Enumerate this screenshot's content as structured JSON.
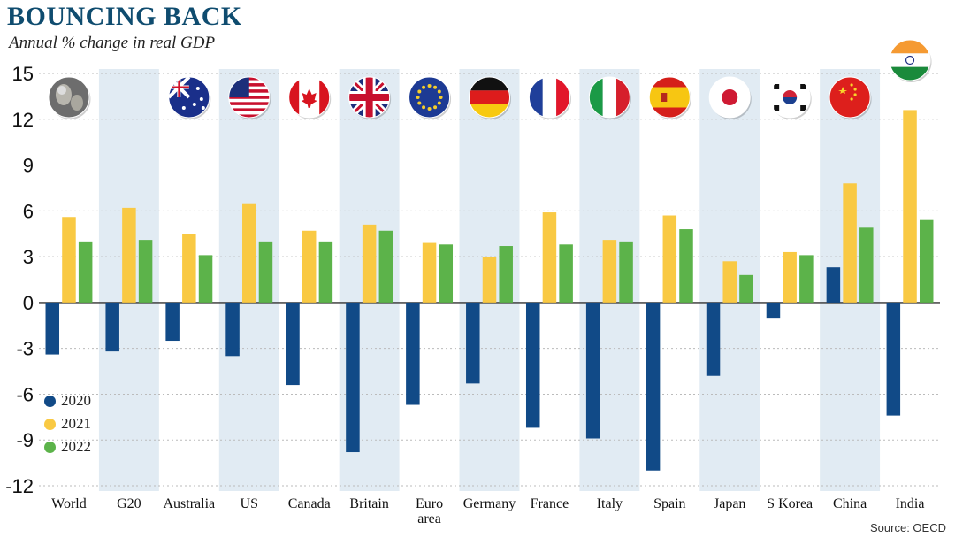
{
  "title": "BOUNCING BACK",
  "subtitle": "Annual % change in real GDP",
  "source": "Source: OECD",
  "colors": {
    "2020": "#114a87",
    "2021": "#f9c943",
    "2022": "#5cb34a",
    "band": "#e1ebf3",
    "title": "#0f4c6f"
  },
  "chart_data": {
    "type": "bar",
    "title": "BOUNCING BACK",
    "subtitle": "Annual % change in real GDP",
    "ylim": [
      -12,
      15
    ],
    "yticks": [
      15,
      12,
      9,
      6,
      3,
      0,
      -3,
      -6,
      -9,
      -12
    ],
    "legend_position": "bottom-left",
    "categories": [
      {
        "label": "World",
        "icon": "globe-icon"
      },
      {
        "label": "G20",
        "icon": ""
      },
      {
        "label": "Australia",
        "icon": "flag-australia-icon"
      },
      {
        "label": "US",
        "icon": "flag-us-icon"
      },
      {
        "label": "Canada",
        "icon": "flag-canada-icon"
      },
      {
        "label": "Britain",
        "icon": "flag-britain-icon"
      },
      {
        "label": "Euro area",
        "icon": "flag-eu-icon"
      },
      {
        "label": "Germany",
        "icon": "flag-germany-icon"
      },
      {
        "label": "France",
        "icon": "flag-france-icon"
      },
      {
        "label": "Italy",
        "icon": "flag-italy-icon"
      },
      {
        "label": "Spain",
        "icon": "flag-spain-icon"
      },
      {
        "label": "Japan",
        "icon": "flag-japan-icon"
      },
      {
        "label": "S Korea",
        "icon": "flag-korea-icon"
      },
      {
        "label": "China",
        "icon": "flag-china-icon"
      },
      {
        "label": "India",
        "icon": "flag-india-icon"
      }
    ],
    "series": [
      {
        "name": "2020",
        "values": [
          -3.4,
          -3.2,
          -2.5,
          -3.5,
          -5.4,
          -9.8,
          -6.7,
          -5.3,
          -8.2,
          -8.9,
          -11.0,
          -4.8,
          -1.0,
          2.3,
          -7.4
        ]
      },
      {
        "name": "2021",
        "values": [
          5.6,
          6.2,
          4.5,
          6.5,
          4.7,
          5.1,
          3.9,
          3.0,
          5.9,
          4.1,
          5.7,
          2.7,
          3.3,
          7.8,
          12.6
        ]
      },
      {
        "name": "2022",
        "values": [
          4.0,
          4.1,
          3.1,
          4.0,
          4.0,
          4.7,
          3.8,
          3.7,
          3.8,
          4.0,
          4.8,
          1.8,
          3.1,
          4.9,
          5.4
        ]
      }
    ]
  }
}
